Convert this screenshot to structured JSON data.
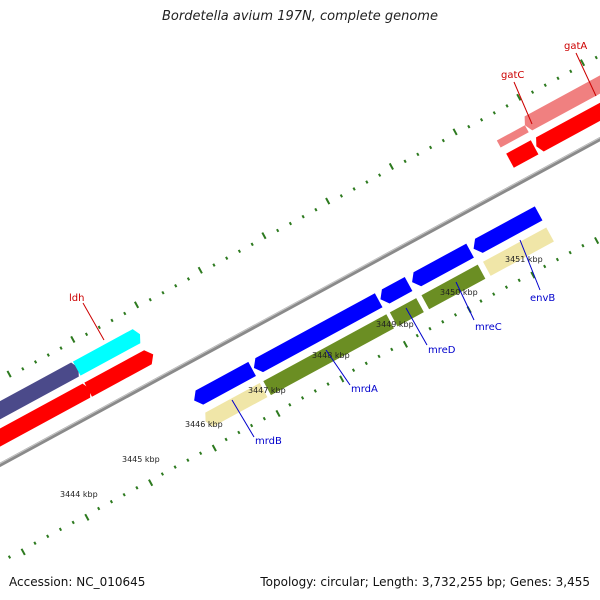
{
  "title": "Bordetella avium 197N, complete genome",
  "footer": {
    "accession": "Accession: NC_010645",
    "summary": "Topology: circular; Length: 3,732,255 bp; Genes: 3,455"
  },
  "colors": {
    "background": "#ffffff",
    "backbone": "#888888",
    "tick": "#2d7a1f",
    "forward_label": "#cc0000",
    "reverse_label": "#0000cc"
  },
  "scale_labels": [
    "3444 kbp",
    "3445 kbp",
    "3446 kbp",
    "3447 kbp",
    "3448 kbp",
    "3449 kbp",
    "3450 kbp",
    "3451 kbp"
  ],
  "genes": [
    {
      "name": "ldh",
      "strand": "forward",
      "label_color": "#cc0000",
      "fill": "#00ffff"
    },
    {
      "name": "gatC",
      "strand": "forward",
      "label_color": "#cc0000",
      "fill": "#f08080"
    },
    {
      "name": "gatA",
      "strand": "forward",
      "label_color": "#cc0000",
      "fill": "#f08080"
    },
    {
      "name": "mrdB",
      "strand": "reverse",
      "label_color": "#0000cc",
      "fill": "#f0e6a8"
    },
    {
      "name": "mrdA",
      "strand": "reverse",
      "label_color": "#0000cc",
      "fill": "#6b8e23"
    },
    {
      "name": "mreD",
      "strand": "reverse",
      "label_color": "#0000cc",
      "fill": "#6b8e23"
    },
    {
      "name": "mreC",
      "strand": "reverse",
      "label_color": "#0000cc",
      "fill": "#6b8e23"
    },
    {
      "name": "envB",
      "strand": "reverse",
      "label_color": "#0000cc",
      "fill": "#f0e6a8"
    }
  ]
}
